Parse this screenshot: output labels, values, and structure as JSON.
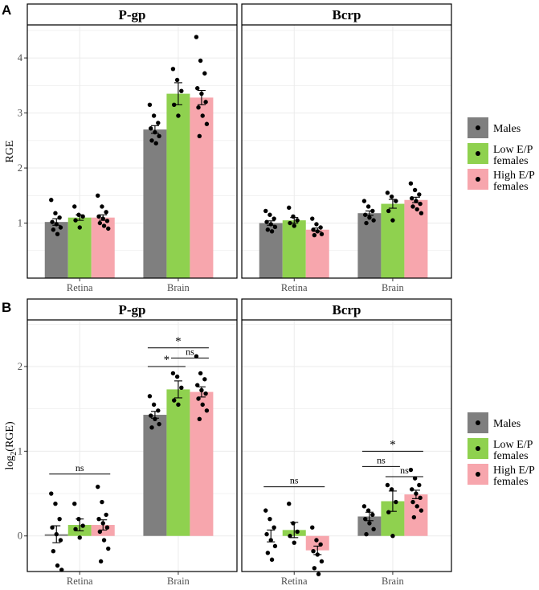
{
  "colors": {
    "Males": "#7f7f7f",
    "Low E/P females": "#8fd14f",
    "High E/P females": "#f7a6ad"
  },
  "legend": {
    "items": [
      {
        "key": "Males",
        "lines": [
          "Males"
        ]
      },
      {
        "key": "Low E/P females",
        "lines": [
          "Low E/P",
          "females"
        ]
      },
      {
        "key": "High E/P females",
        "lines": [
          "High E/P",
          "females"
        ]
      }
    ]
  },
  "chart_data": [
    {
      "panel": "A",
      "type": "bar",
      "ylabel": "RGE",
      "ylim": [
        0,
        4.6
      ],
      "yticks": [
        1,
        2,
        3,
        4
      ],
      "categories": [
        "Retina",
        "Brain"
      ],
      "series": [
        {
          "name": "Males",
          "values": [
            1.02,
            2.7
          ],
          "se": [
            0.06,
            0.07
          ]
        },
        {
          "name": "Low E/P females",
          "values": [
            1.1,
            3.35
          ],
          "se": [
            0.05,
            0.2
          ]
        },
        {
          "name": "High E/P females",
          "values": [
            1.1,
            3.28
          ],
          "se": [
            0.05,
            0.13
          ]
        }
      ],
      "facets": [
        {
          "title": "P-gp",
          "values": {
            "Retina": [
              1.02,
              1.1,
              1.1
            ],
            "Brain": [
              2.7,
              3.35,
              3.28
            ]
          },
          "se": {
            "Retina": [
              0.06,
              0.05,
              0.05
            ],
            "Brain": [
              0.07,
              0.2,
              0.13
            ]
          },
          "points": {
            "Retina": [
              [
                1.42,
                1.18,
                1.1,
                1.02,
                0.98,
                0.92,
                0.88,
                0.8
              ],
              [
                1.3,
                1.15,
                1.12,
                1.05,
                0.92
              ],
              [
                1.5,
                1.3,
                1.2,
                1.12,
                1.08,
                1.04,
                1.0,
                0.95,
                0.9
              ]
            ],
            "Brain": [
              [
                3.15,
                2.95,
                2.82,
                2.72,
                2.65,
                2.58,
                2.5,
                2.45
              ],
              [
                3.8,
                3.6,
                3.4,
                3.15,
                2.95
              ],
              [
                4.38,
                3.95,
                3.72,
                3.45,
                3.35,
                3.2,
                3.1,
                2.95,
                2.8,
                2.58
              ]
            ]
          },
          "annotations": []
        },
        {
          "title": "Bcrp",
          "values": {
            "Retina": [
              1.0,
              1.05,
              0.88
            ],
            "Brain": [
              1.18,
              1.35,
              1.42
            ]
          },
          "se": {
            "Retina": [
              0.04,
              0.05,
              0.03
            ],
            "Brain": [
              0.04,
              0.08,
              0.05
            ]
          },
          "points": {
            "Retina": [
              [
                1.22,
                1.15,
                1.08,
                1.02,
                0.98,
                0.93,
                0.88,
                0.85
              ],
              [
                1.28,
                1.12,
                1.05,
                1.0,
                0.95
              ],
              [
                1.08,
                0.98,
                0.92,
                0.88,
                0.85,
                0.8,
                0.78
              ]
            ],
            "Brain": [
              [
                1.4,
                1.3,
                1.22,
                1.15,
                1.1,
                1.05,
                1.0
              ],
              [
                1.55,
                1.48,
                1.4,
                1.22,
                1.05
              ],
              [
                1.72,
                1.6,
                1.52,
                1.45,
                1.4,
                1.35,
                1.3,
                1.25,
                1.18
              ]
            ]
          },
          "annotations": []
        }
      ]
    },
    {
      "panel": "B",
      "type": "bar",
      "ylabel_base": "log",
      "ylabel_sub": "2",
      "ylabel_rest": "(RGE)",
      "ylim": [
        -0.42,
        2.55
      ],
      "yticks": [
        0,
        1,
        2
      ],
      "categories": [
        "Retina",
        "Brain"
      ],
      "series": [
        {
          "name": "Males",
          "values": [
            0.02,
            1.43
          ],
          "se": [
            0.1,
            0.04
          ]
        },
        {
          "name": "Low E/P females",
          "values": [
            0.13,
            1.73
          ],
          "se": [
            0.07,
            0.1
          ]
        },
        {
          "name": "High E/P females",
          "values": [
            0.13,
            1.7
          ],
          "se": [
            0.06,
            0.06
          ]
        }
      ],
      "facets": [
        {
          "title": "P-gp",
          "values": {
            "Retina": [
              0.02,
              0.13,
              0.13
            ],
            "Brain": [
              1.43,
              1.73,
              1.7
            ]
          },
          "se": {
            "Retina": [
              0.1,
              0.07,
              0.06
            ],
            "Brain": [
              0.04,
              0.1,
              0.06
            ]
          },
          "points": {
            "Retina": [
              [
                0.5,
                0.38,
                0.2,
                0.1,
                0.02,
                -0.05,
                -0.18,
                -0.35,
                -0.4
              ],
              [
                0.38,
                0.2,
                0.12,
                0.08,
                -0.02
              ],
              [
                0.58,
                0.4,
                0.25,
                0.2,
                0.15,
                0.1,
                0.05,
                -0.05,
                -0.15,
                -0.3
              ]
            ],
            "Brain": [
              [
                1.65,
                1.55,
                1.48,
                1.42,
                1.38,
                1.32,
                1.28
              ],
              [
                1.92,
                1.88,
                1.75,
                1.6,
                1.55
              ],
              [
                2.12,
                1.92,
                1.85,
                1.78,
                1.72,
                1.68,
                1.62,
                1.55,
                1.48,
                1.38
              ]
            ]
          },
          "annotations": [
            {
              "cat": "Retina",
              "from": 0,
              "to": 2,
              "y": 0.73,
              "label": "ns"
            },
            {
              "cat": "Brain",
              "from": 0,
              "to": 2,
              "y": 2.22,
              "label": "*"
            },
            {
              "cat": "Brain",
              "from": 0,
              "to": 1,
              "y": 2.0,
              "label": "*"
            },
            {
              "cat": "Brain",
              "from": 1,
              "to": 2,
              "y": 2.1,
              "label": "ns"
            }
          ]
        },
        {
          "title": "Bcrp",
          "values": {
            "Retina": [
              0.0,
              0.07,
              -0.17
            ],
            "Brain": [
              0.23,
              0.41,
              0.49
            ]
          },
          "se": {
            "Retina": [
              0.07,
              0.09,
              0.05
            ],
            "Brain": [
              0.05,
              0.12,
              0.05
            ]
          },
          "points": {
            "Retina": [
              [
                0.3,
                0.2,
                0.1,
                0.02,
                -0.05,
                -0.12,
                -0.2,
                -0.28
              ],
              [
                0.38,
                0.15,
                0.05,
                0.0,
                -0.08
              ],
              [
                0.1,
                -0.05,
                -0.1,
                -0.18,
                -0.22,
                -0.3,
                -0.38,
                -0.45
              ]
            ],
            "Brain": [
              [
                0.35,
                0.3,
                0.25,
                0.2,
                0.15,
                0.08,
                0.02
              ],
              [
                0.6,
                0.55,
                0.4,
                0.28,
                0.0
              ],
              [
                0.78,
                0.68,
                0.6,
                0.55,
                0.5,
                0.45,
                0.4,
                0.35,
                0.3,
                0.22
              ]
            ]
          },
          "annotations": [
            {
              "cat": "Retina",
              "from": 0,
              "to": 2,
              "y": 0.58,
              "label": "ns"
            },
            {
              "cat": "Brain",
              "from": 0,
              "to": 2,
              "y": 1.0,
              "label": "*"
            },
            {
              "cat": "Brain",
              "from": 0,
              "to": 1,
              "y": 0.82,
              "label": "ns"
            },
            {
              "cat": "Brain",
              "from": 1,
              "to": 2,
              "y": 0.7,
              "label": "ns"
            }
          ]
        }
      ]
    }
  ]
}
